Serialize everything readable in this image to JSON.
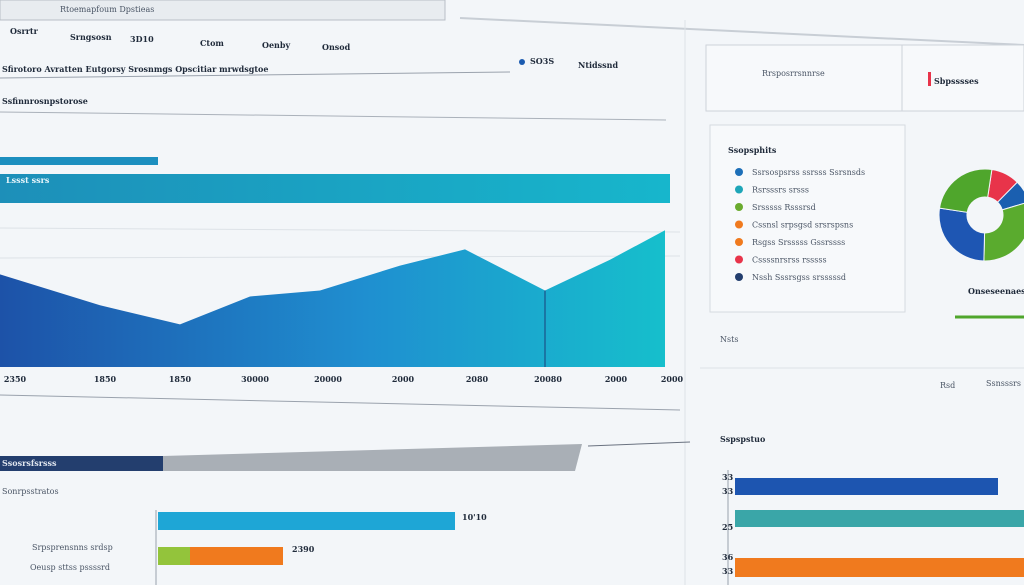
{
  "header": {
    "title": "Rtoemapfoum Dpstieas",
    "tabs": [
      "Osrrtr",
      "Srngsosn",
      "3D10",
      "Ctom",
      "Oenby",
      "Onsod"
    ]
  },
  "toolbar": {
    "text": "Sfirotoro Avratten Eutgorsy Srosnmgs Opscitiar mrwdsgtoe",
    "legend": [
      "SO3S",
      "Ntidssnd"
    ]
  },
  "main": {
    "heading": "Ssfinnrosnpstorose",
    "bar_label": "Lssst ssrs"
  },
  "chart_data": [
    {
      "type": "area",
      "categories": [
        "2350",
        "1850",
        "1850",
        "30000",
        "20000",
        "2000",
        "2080",
        "20080",
        "2000",
        "2000"
      ],
      "values": [
        63,
        42,
        29,
        48,
        52,
        69,
        80,
        52,
        73,
        93
      ],
      "ylim": [
        0,
        100
      ]
    },
    {
      "type": "pie",
      "categories": [
        null,
        null,
        null,
        null,
        null
      ],
      "values": [
        10,
        8,
        30,
        27,
        25
      ],
      "colors": [
        "#e8344a",
        "#1a5fb0",
        "#5aab2e",
        "#1e56b3",
        "#4fa62c"
      ],
      "label": "Onseseenaes"
    }
  ],
  "side_top": {
    "left": "Rrsposrrsnnrse",
    "right": "Sbpsssses"
  },
  "side_panel": {
    "title": "Ssopsphits",
    "items": [
      "Ssrsospsrss ssrsss Ssrsnsds",
      "Rsrsssrs srsss",
      "Srsssss Rsssrsd",
      "Cssnsl srpsgsd srsrspsns",
      "Rsgss Srsssss Gssrssss",
      "Cssssnrsrss rsssss",
      "Nssh Sssrsgss srsssssd"
    ],
    "note": "Nsts"
  },
  "side_controls": [
    "Rsd",
    "Ssnsssrs"
  ],
  "bottom": {
    "bar_label": "Ssosrsfsrsss",
    "heading": "Sonrpsstratos",
    "rows": [
      "Srpsprensnns srdsp",
      "Oeusp sttss pssssrd"
    ],
    "values": [
      "10'10",
      "2390"
    ]
  },
  "bottom_right": {
    "title": "Sspspstuo",
    "labels": [
      "33",
      "33",
      "25",
      "36",
      "33"
    ]
  }
}
